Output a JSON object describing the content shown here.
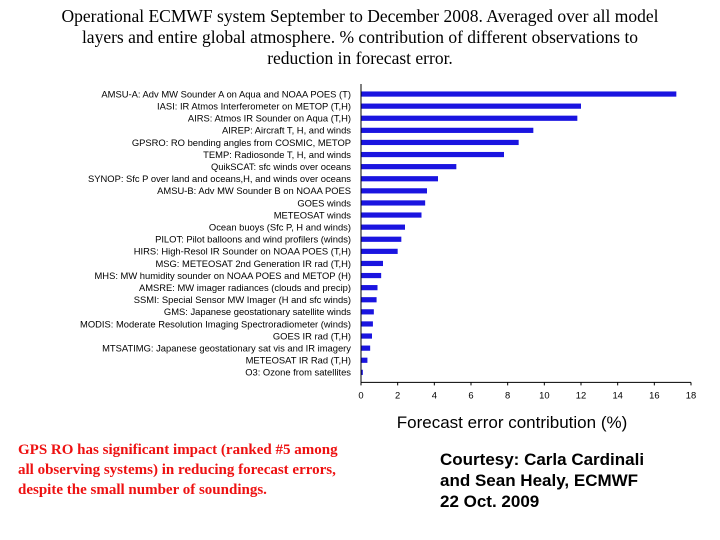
{
  "slide": {
    "title_lines": [
      "Operational ECMWF system September to December 2008.  Averaged over all model",
      "layers and entire global atmosphere.  % contribution of different observations to",
      "reduction in forecast error."
    ],
    "note_lines": [
      "GPS RO has significant impact (ranked #5 among",
      "all observing systems) in reducing forecast errors,",
      "despite the small number of soundings."
    ],
    "courtesy_lines": [
      "Courtesy: Carla Cardinali",
      "and Sean Healy, ECMWF",
      "22 Oct. 2009"
    ]
  },
  "colors": {
    "bar": "#1a14e0",
    "note_text": "#ee1111",
    "axis": "#000000"
  },
  "chart_data": {
    "type": "bar",
    "orientation": "horizontal",
    "xlabel": "Forecast error contribution (%)",
    "xlim": [
      0,
      18
    ],
    "xticks": [
      0,
      2,
      4,
      6,
      8,
      10,
      12,
      14,
      16,
      18
    ],
    "grid": false,
    "categories": [
      "AMSU-A: Adv MW Sounder A on Aqua and NOAA POES (T)",
      "IASI: IR Atmos Interferometer on METOP (T,H)",
      "AIRS: Atmos IR Sounder on Aqua (T,H)",
      "AIREP: Aircraft T, H, and winds",
      "GPSRO: RO bending angles from COSMIC, METOP",
      "TEMP: Radiosonde T, H, and winds",
      "QuikSCAT: sfc winds over oceans",
      "SYNOP: Sfc P over land and oceans,H, and winds over oceans",
      "AMSU-B: Adv MW Sounder B on NOAA POES",
      "GOES winds",
      "METEOSAT winds",
      "Ocean buoys (Sfc P, H and winds)",
      "PILOT: Pilot balloons and wind profilers (winds)",
      "HIRS: High-Resol IR Sounder on NOAA POES (T,H)",
      "MSG: METEOSAT 2nd Generation IR rad (T,H)",
      "MHS: MW humidity sounder on NOAA POES and METOP (H)",
      "AMSRE: MW imager radiances (clouds and precip)",
      "SSMI: Special Sensor MW Imager (H and sfc winds)",
      "GMS: Japanese geostationary satellite winds",
      "MODIS: Moderate Resolution Imaging Spectroradiometer (winds)",
      "GOES IR rad (T,H)",
      "MTSATIMG: Japanese geostationary sat vis and IR imagery",
      "METEOSAT IR Rad (T,H)",
      "O3: Ozone from satellites"
    ],
    "values": [
      17.2,
      12.0,
      11.8,
      9.4,
      8.6,
      7.8,
      5.2,
      4.2,
      3.6,
      3.5,
      3.3,
      2.4,
      2.2,
      2.0,
      1.2,
      1.1,
      0.9,
      0.85,
      0.7,
      0.65,
      0.6,
      0.5,
      0.35,
      0.1
    ]
  }
}
